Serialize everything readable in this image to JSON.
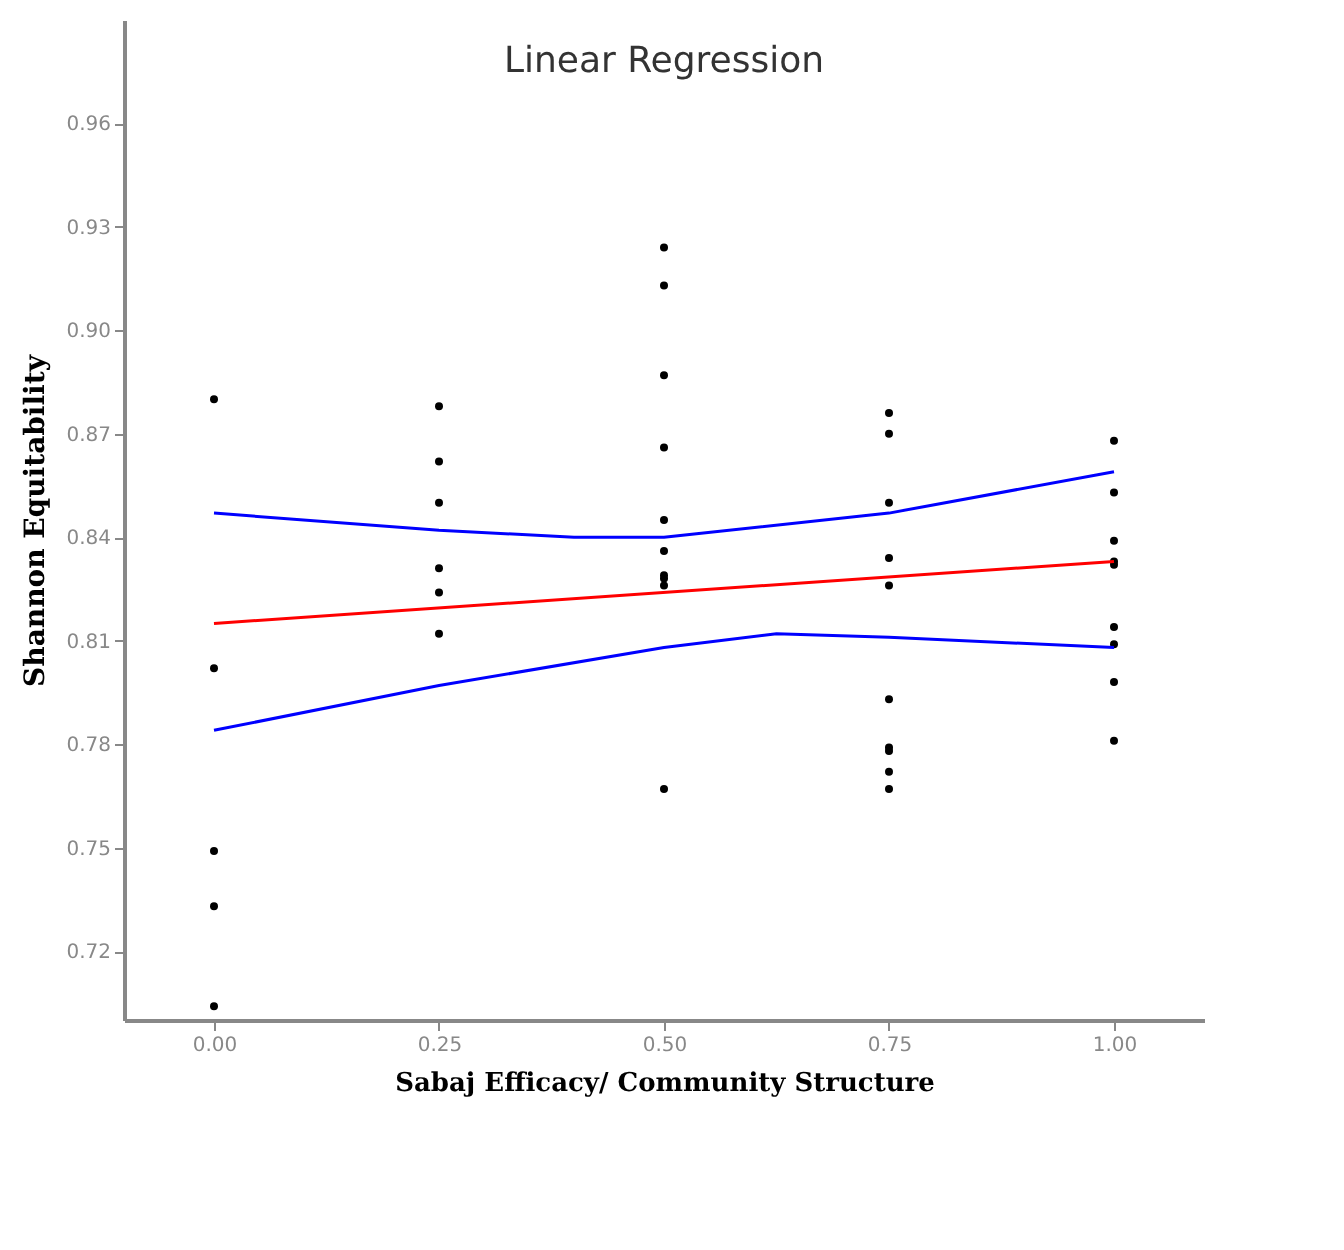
{
  "chart_data": {
    "type": "scatter",
    "title": "Linear Regression",
    "xlabel": "Sabaj Efficacy/ Community Structure",
    "ylabel": "Shannon Equitability",
    "xlim": [
      -0.1,
      1.1
    ],
    "ylim": [
      0.7,
      0.99
    ],
    "xticks": [
      {
        "value": 0,
        "label": "0.00"
      },
      0.25,
      {
        "value": 0.5,
        "label": "0.50"
      },
      0.75,
      {
        "value": 1,
        "label": "1.00"
      }
    ],
    "yticks": [
      0.72,
      0.75,
      0.78,
      0.81,
      0.84,
      0.87,
      {
        "value": 0.9,
        "label": "0.90"
      },
      0.93,
      0.96
    ],
    "grid": false,
    "series": [
      {
        "color": "#000000",
        "marker": "circle",
        "x": [
          0,
          0,
          0,
          0,
          0,
          0.25,
          0.25,
          0.25,
          0.25,
          0.25,
          0.25,
          0.5,
          0.5,
          0.5,
          0.5,
          0.5,
          0.5,
          0.5,
          0.5,
          0.5,
          0.5,
          0.75,
          0.75,
          0.75,
          0.75,
          0.75,
          0.75,
          0.75,
          0.75,
          0.75,
          0.75,
          1,
          1,
          1,
          1,
          1,
          1,
          1,
          1,
          1
        ],
        "values": [
          0.88,
          0.802,
          0.749,
          0.733,
          0.704,
          0.878,
          0.862,
          0.85,
          0.831,
          0.824,
          0.812,
          0.924,
          0.913,
          0.887,
          0.866,
          0.845,
          0.836,
          0.829,
          0.828,
          0.826,
          0.767,
          0.876,
          0.87,
          0.85,
          0.834,
          0.826,
          0.793,
          0.779,
          0.778,
          0.772,
          0.767,
          0.868,
          0.853,
          0.839,
          0.833,
          0.832,
          0.814,
          0.809,
          0.798,
          0.781
        ]
      },
      {
        "type": "line",
        "color": "#ff0000",
        "x": [
          0,
          1
        ],
        "values": [
          0.815,
          0.833
        ]
      },
      {
        "type": "line",
        "color": "#0000ff",
        "x": [
          0,
          0.25,
          0.4,
          0.5,
          0.75,
          1
        ],
        "values": [
          0.847,
          0.842,
          0.84,
          0.84,
          0.847,
          0.859
        ]
      },
      {
        "type": "line",
        "color": "#0000ff",
        "x": [
          0,
          0.25,
          0.5,
          0.625,
          0.75,
          1
        ],
        "values": [
          0.784,
          0.797,
          0.808,
          0.812,
          0.811,
          0.808
        ]
      }
    ]
  }
}
